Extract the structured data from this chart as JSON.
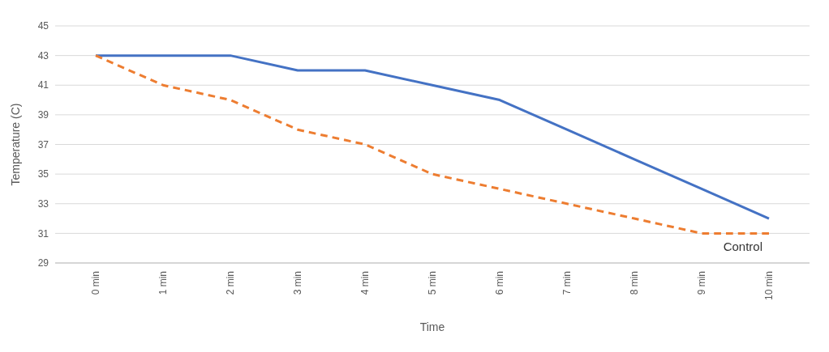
{
  "chart_data": {
    "type": "line",
    "xlabel": "Time",
    "ylabel": "Temperature (C)",
    "categories": [
      "0 min",
      "1 min",
      "2 min",
      "3 min",
      "4 min",
      "5 min",
      "6 min",
      "7 min",
      "8 min",
      "9 min",
      "10 min"
    ],
    "series": [
      {
        "color": "#4472c4",
        "line_style": "solid",
        "values": [
          43,
          43,
          43,
          42,
          42,
          41,
          40,
          38,
          36,
          34,
          32
        ]
      },
      {
        "name": "Control",
        "color": "#ed7d31",
        "line_style": "dashed",
        "values": [
          43,
          41,
          40,
          38,
          37,
          35,
          34,
          33,
          32,
          31,
          31
        ]
      }
    ],
    "ylim": [
      29,
      45
    ],
    "yticks": [
      29,
      31,
      33,
      35,
      37,
      39,
      41,
      43,
      45
    ],
    "grid": "y",
    "marker": "none"
  }
}
